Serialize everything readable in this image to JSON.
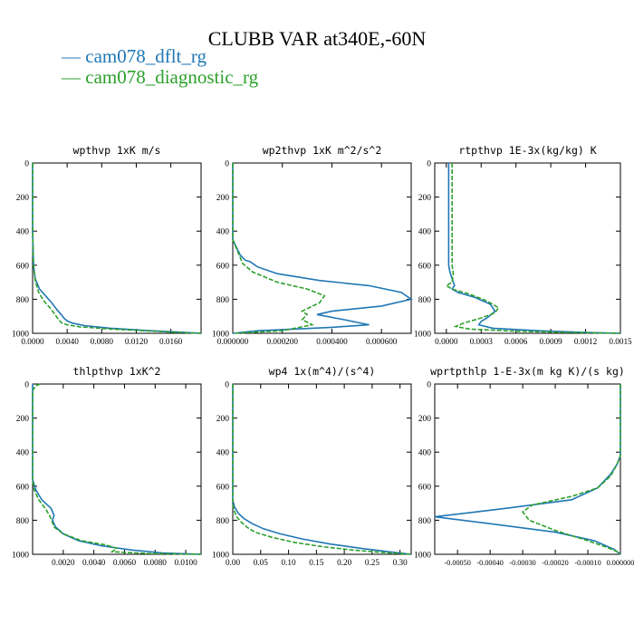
{
  "title": "CLUBB VAR at340E,-60N",
  "legend": [
    {
      "label": "cam078_dflt_rg",
      "color": "#1f77b4"
    },
    {
      "label": "cam078_diagnostic_rg",
      "color": "#2ca02c"
    }
  ],
  "chart_data": [
    {
      "type": "line",
      "title": "wpthvp  1xK m/s",
      "xlim": [
        0,
        0.0195
      ],
      "ylim": [
        1000,
        0
      ],
      "xticks": [
        0.0,
        0.004,
        0.008,
        0.012,
        0.016
      ],
      "xtick_labels": [
        "0.0000",
        "0.0040",
        "0.0080",
        "0.0120",
        "0.0160"
      ],
      "yticks": [
        0,
        200,
        400,
        600,
        800,
        1000
      ],
      "y_inverted": true,
      "series": [
        {
          "name": "cam078_dflt_rg",
          "color": "#1f77b4",
          "dash": "solid",
          "x": [
            0,
            0,
            0.0001,
            0.0003,
            0.0008,
            0.0015,
            0.0022,
            0.0028,
            0.0033,
            0.0037,
            0.0041,
            0.0046,
            0.006,
            0.009,
            0.013,
            0.017,
            0.0195
          ],
          "y": [
            0,
            400,
            600,
            680,
            740,
            780,
            820,
            860,
            890,
            915,
            930,
            940,
            955,
            970,
            983,
            993,
            1000
          ]
        },
        {
          "name": "cam078_diagnostic_rg",
          "color": "#2ca02c",
          "dash": "dashed",
          "x": [
            0,
            0,
            0.0001,
            0.0003,
            0.0007,
            0.0013,
            0.002,
            0.0026,
            0.003,
            0.0034,
            0.004,
            0.0055,
            0.009,
            0.013,
            0.017,
            0.0195
          ],
          "y": [
            0,
            400,
            600,
            690,
            760,
            810,
            850,
            890,
            920,
            940,
            950,
            962,
            975,
            985,
            995,
            1000
          ]
        }
      ]
    },
    {
      "type": "line",
      "title": "wp2thvp  1xK m^2/s^2",
      "xlim": [
        0,
        0.00072
      ],
      "ylim": [
        1000,
        0
      ],
      "xticks": [
        0.0,
        0.0002,
        0.0004,
        0.0006
      ],
      "xtick_labels": [
        "0.000000",
        "0.000200",
        "0.000400",
        "0.000600"
      ],
      "yticks": [
        0,
        200,
        400,
        600,
        800,
        1000
      ],
      "y_inverted": true,
      "series": [
        {
          "name": "cam078_dflt_rg",
          "color": "#1f77b4",
          "dash": "solid",
          "x": [
            0,
            0,
            1e-05,
            3e-05,
            5e-05,
            7e-05,
            0.0001,
            0.00018,
            0.00035,
            0.00055,
            0.00068,
            0.00072,
            0.0006,
            0.0004,
            0.00034,
            0.00045,
            0.00055,
            0.0004,
            0.0001,
            0
          ],
          "y": [
            0,
            450,
            480,
            540,
            570,
            580,
            610,
            650,
            690,
            720,
            760,
            800,
            840,
            870,
            890,
            920,
            950,
            965,
            985,
            1000
          ]
        },
        {
          "name": "cam078_diagnostic_rg",
          "color": "#2ca02c",
          "dash": "dashed",
          "x": [
            0,
            0,
            2e-05,
            4e-05,
            8e-05,
            0.00018,
            0.0003,
            0.00037,
            0.00035,
            0.00028,
            0.0003,
            0.00028,
            0.00032,
            0.0002,
            0
          ],
          "y": [
            0,
            450,
            520,
            590,
            640,
            700,
            740,
            780,
            820,
            870,
            890,
            920,
            950,
            985,
            1000
          ]
        }
      ]
    },
    {
      "type": "line",
      "title": "rtpthvp  1E-3x(kg/kg) K",
      "xlim": [
        -0.0001,
        0.0015
      ],
      "ylim": [
        1000,
        0
      ],
      "xticks": [
        0.0,
        0.0003,
        0.0006,
        0.0009,
        0.0012,
        0.0015
      ],
      "xtick_labels": [
        "0.0000",
        "0.0003",
        "0.0006",
        "0.0009",
        "0.0012",
        "0.0015"
      ],
      "yticks": [
        0,
        200,
        400,
        600,
        800,
        1000
      ],
      "y_inverted": true,
      "series": [
        {
          "name": "cam078_dflt_rg",
          "color": "#1f77b4",
          "dash": "solid",
          "x": [
            2e-05,
            2e-05,
            3e-05,
            5e-05,
            7e-05,
            5e-05,
            0.0001,
            0.00025,
            0.00038,
            0.00042,
            0.00035,
            0.0003,
            0.00028,
            0.0004,
            0.0008,
            0.0012,
            0.0015
          ],
          "y": [
            0,
            600,
            640,
            680,
            720,
            740,
            760,
            790,
            830,
            870,
            910,
            930,
            950,
            970,
            985,
            995,
            1000
          ]
        },
        {
          "name": "cam078_diagnostic_rg",
          "color": "#2ca02c",
          "dash": "dashed",
          "x": [
            5e-05,
            5e-05,
            6e-05,
            5e-05,
            0.0,
            5e-05,
            0.0002,
            0.00035,
            0.00045,
            0.00042,
            0.0003,
            0.00015,
            8e-05,
            0.0002,
            0.0006,
            0.0011,
            0.0015
          ],
          "y": [
            0,
            600,
            650,
            700,
            720,
            740,
            770,
            810,
            850,
            880,
            910,
            940,
            960,
            975,
            988,
            996,
            1000
          ]
        }
      ]
    },
    {
      "type": "line",
      "title": "thlpthvp  1xK^2",
      "xlim": [
        0,
        0.011
      ],
      "ylim": [
        1000,
        0
      ],
      "xticks": [
        0.002,
        0.004,
        0.006,
        0.008,
        0.01
      ],
      "xtick_labels": [
        "0.0020",
        "0.0040",
        "0.0060",
        "0.0080",
        "0.0100"
      ],
      "yticks": [
        0,
        200,
        400,
        600,
        800,
        1000
      ],
      "y_inverted": true,
      "series": [
        {
          "name": "cam078_dflt_rg",
          "color": "#1f77b4",
          "dash": "solid",
          "x": [
            0,
            0,
            0.0002,
            0.0006,
            0.0012,
            0.0014,
            0.0013,
            0.0015,
            0.002,
            0.003,
            0.0045,
            0.0065,
            0.0085,
            0.011
          ],
          "y": [
            0,
            560,
            620,
            680,
            730,
            770,
            800,
            840,
            880,
            920,
            950,
            975,
            992,
            1000
          ]
        },
        {
          "name": "cam078_diagnostic_rg",
          "color": "#2ca02c",
          "dash": "dashed",
          "x": [
            0.0005,
            0.0002,
            0,
            0,
            0.0001,
            0.0004,
            0.0009,
            0.0012,
            0.0014,
            0.002,
            0.0032,
            0.0048,
            0.0055,
            0.0052,
            0.0075,
            0.011
          ],
          "y": [
            0,
            10,
            40,
            560,
            620,
            680,
            740,
            790,
            840,
            880,
            920,
            945,
            965,
            985,
            995,
            1000
          ]
        }
      ]
    },
    {
      "type": "line",
      "title": "wp4  1x(m^4)/(s^4)",
      "xlim": [
        0,
        0.32
      ],
      "ylim": [
        1000,
        0
      ],
      "xticks": [
        0.0,
        0.05,
        0.1,
        0.15,
        0.2,
        0.25,
        0.3
      ],
      "xtick_labels": [
        "0.00",
        "0.05",
        "0.10",
        "0.15",
        "0.20",
        "0.25",
        "0.30"
      ],
      "yticks": [
        0,
        200,
        400,
        600,
        800,
        1000
      ],
      "y_inverted": true,
      "series": [
        {
          "name": "cam078_dflt_rg",
          "color": "#1f77b4",
          "dash": "solid",
          "x": [
            0,
            0,
            0.003,
            0.01,
            0.02,
            0.035,
            0.055,
            0.085,
            0.125,
            0.175,
            0.23,
            0.28,
            0.32
          ],
          "y": [
            0,
            680,
            720,
            760,
            790,
            820,
            850,
            880,
            910,
            940,
            965,
            985,
            1000
          ]
        },
        {
          "name": "cam078_diagnostic_rg",
          "color": "#2ca02c",
          "dash": "dashed",
          "x": [
            0,
            0,
            0.002,
            0.007,
            0.015,
            0.025,
            0.04,
            0.07,
            0.11,
            0.16,
            0.215,
            0.27,
            0.32
          ],
          "y": [
            0,
            700,
            740,
            780,
            810,
            840,
            870,
            900,
            930,
            955,
            975,
            990,
            1000
          ]
        }
      ]
    },
    {
      "type": "line",
      "title": "wprtpthlp  1-E-3x(m kg K)/(s kg)",
      "xlim": [
        -0.00057,
        0.0
      ],
      "ylim": [
        1000,
        0
      ],
      "xticks": [
        -0.0005,
        -0.0004,
        -0.0003,
        -0.0002,
        -0.0001,
        0.0
      ],
      "xtick_labels": [
        "-0.00050",
        "-0.00040",
        "-0.00030",
        "-0.00020",
        "-0.00010",
        "0.000000"
      ],
      "yticks": [
        0,
        200,
        400,
        600,
        800,
        1000
      ],
      "y_inverted": true,
      "series": [
        {
          "name": "cam078_dflt_rg",
          "color": "#1f77b4",
          "dash": "solid",
          "x": [
            0,
            0,
            -1e-05,
            -3e-05,
            -7e-05,
            -0.00015,
            -0.00035,
            -0.00057,
            -0.0004,
            -0.0002,
            -8e-05,
            -2e-05,
            0
          ],
          "y": [
            0,
            420,
            470,
            530,
            610,
            680,
            730,
            780,
            820,
            870,
            920,
            970,
            1000
          ]
        },
        {
          "name": "cam078_diagnostic_rg",
          "color": "#2ca02c",
          "dash": "dashed",
          "x": [
            0,
            0,
            -1e-05,
            -3e-05,
            -7e-05,
            -0.00015,
            -0.00027,
            -0.0003,
            -0.00028,
            -0.0002,
            -0.0001,
            -4e-05,
            -1e-05,
            0
          ],
          "y": [
            0,
            420,
            470,
            540,
            610,
            660,
            710,
            750,
            800,
            860,
            920,
            960,
            985,
            1000
          ]
        }
      ]
    }
  ]
}
